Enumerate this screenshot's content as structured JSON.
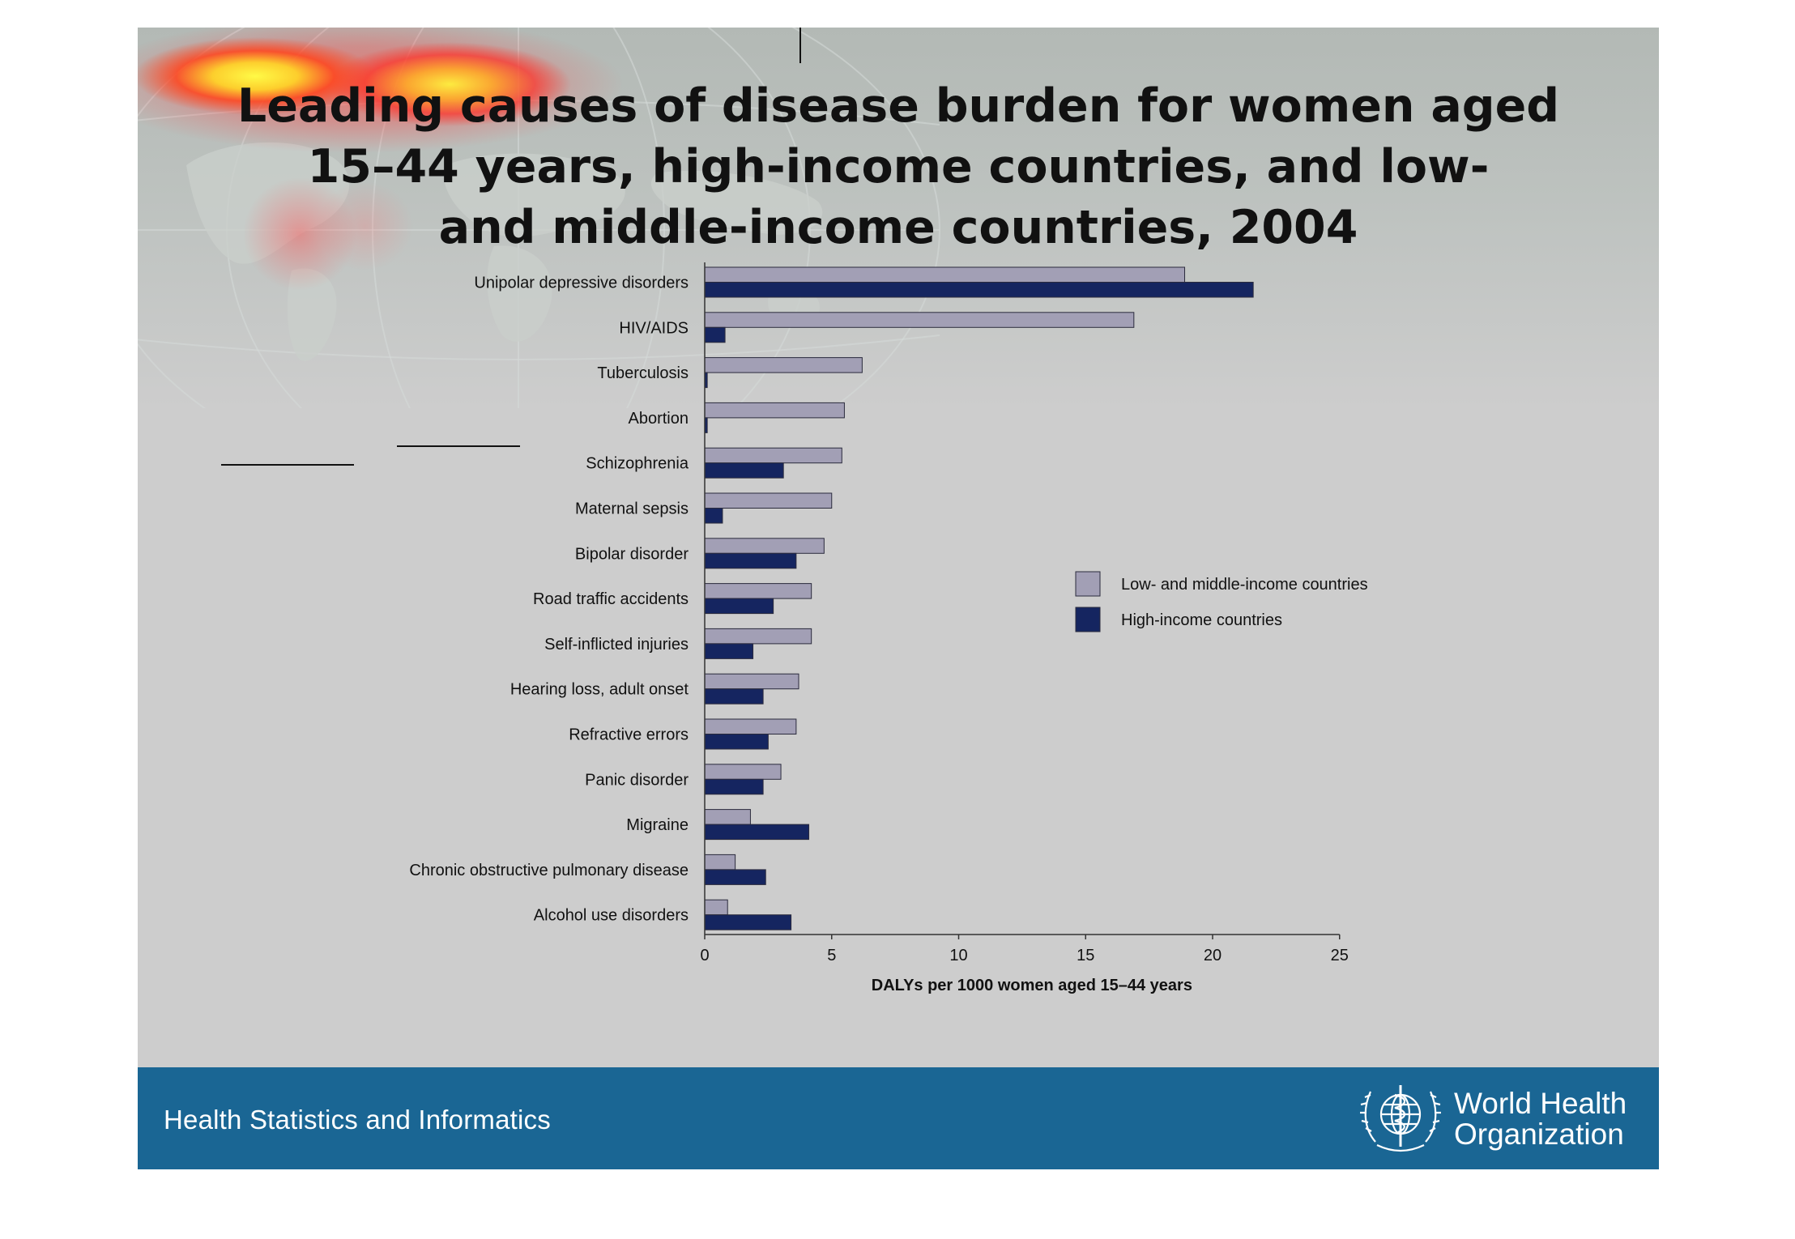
{
  "title_lines": [
    "Leading causes of disease burden for women aged",
    "15–44 years, high-income countries, and low-",
    "and middle-income countries, 2004"
  ],
  "footer": {
    "text": "Health Statistics and Informatics",
    "org_lines": [
      "World Health",
      "Organization"
    ]
  },
  "colors": {
    "low_middle": "#a29fb5",
    "high": "#152560",
    "footer_bg": "#1a6694"
  },
  "chart_data": {
    "type": "bar",
    "orientation": "horizontal",
    "title": "Leading causes of disease burden for women aged 15–44 years, high-income countries, and low- and middle-income countries, 2004",
    "categories": [
      "Unipolar depressive disorders",
      "HIV/AIDS",
      "Tuberculosis",
      "Abortion",
      "Schizophrenia",
      "Maternal sepsis",
      "Bipolar disorder",
      "Road traffic accidents",
      "Self-inflicted injuries",
      "Hearing loss, adult onset",
      "Refractive errors",
      "Panic disorder",
      "Migraine",
      "Chronic obstructive pulmonary disease",
      "Alcohol use disorders"
    ],
    "series": [
      {
        "name": "Low- and middle-income countries",
        "values": [
          18.9,
          16.9,
          6.2,
          5.5,
          5.4,
          5.0,
          4.7,
          4.2,
          4.2,
          3.7,
          3.6,
          3.0,
          1.8,
          1.2,
          0.9
        ]
      },
      {
        "name": "High-income countries",
        "values": [
          21.6,
          0.8,
          0.1,
          0.1,
          3.1,
          0.7,
          3.6,
          2.7,
          1.9,
          2.3,
          2.5,
          2.3,
          4.1,
          2.4,
          3.4
        ]
      }
    ],
    "xlabel": "DALYs per 1000 women aged 15–44 years",
    "ylabel": "",
    "xlim": [
      0,
      25
    ],
    "xticks": [
      0,
      5,
      10,
      15,
      20,
      25
    ],
    "legend_position": "right",
    "grid": false
  }
}
